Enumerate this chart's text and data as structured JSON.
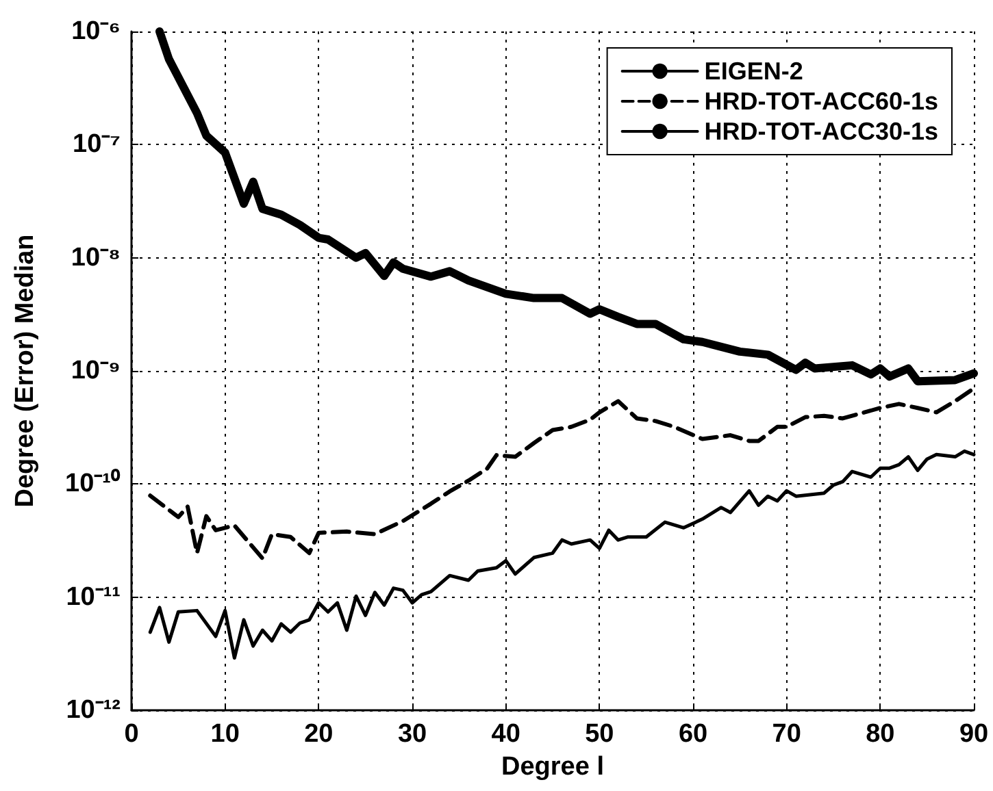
{
  "chart_data": {
    "type": "line",
    "xlabel": "Degree l",
    "ylabel": "Degree (Error) Median",
    "log": "y",
    "grid": true,
    "legend": "top right",
    "marker": "none",
    "xlim": [
      0,
      90
    ],
    "xticks": [
      0,
      10,
      20,
      30,
      40,
      50,
      60,
      70,
      80,
      90
    ],
    "ylim": [
      1e-12,
      1e-06
    ],
    "yticks": [
      {
        "value": 1e-12,
        "label": "10⁻¹²"
      },
      {
        "value": 1e-11,
        "label": "10⁻¹¹"
      },
      {
        "value": 1e-10,
        "label": "10⁻¹⁰"
      },
      {
        "value": 1e-09,
        "label": "10⁻⁹"
      },
      {
        "value": 1e-08,
        "label": "10⁻⁸"
      },
      {
        "value": 1e-07,
        "label": "10⁻⁷"
      },
      {
        "value": 1e-06,
        "label": "10⁻⁶"
      }
    ],
    "series": [
      {
        "name": "EIGEN-2",
        "color": "#000000",
        "line_style": "solid",
        "x": [
          3,
          4,
          7,
          8,
          10,
          12,
          13,
          14,
          16,
          18,
          20,
          21,
          24,
          25,
          27,
          28,
          29,
          32,
          34,
          36,
          40,
          43,
          46,
          49,
          50,
          52,
          54,
          56,
          59,
          61,
          65,
          68,
          71,
          72,
          73,
          77,
          79,
          80,
          81,
          83,
          84,
          88,
          90
        ],
        "values": [
          1e-06,
          5.7e-07,
          1.9e-07,
          1.2e-07,
          8.5e-08,
          3e-08,
          4.7e-08,
          2.7e-08,
          2.4e-08,
          1.95e-08,
          1.5e-08,
          1.45e-08,
          1e-08,
          1.1e-08,
          6.9e-09,
          9.1e-09,
          8e-09,
          6.8e-09,
          7.6e-09,
          6.3e-09,
          4.8e-09,
          4.4e-09,
          4.4e-09,
          3.2e-09,
          3.5e-09,
          3e-09,
          2.6e-09,
          2.6e-09,
          1.9e-09,
          1.8e-09,
          1.48e-09,
          1.39e-09,
          1.02e-09,
          1.18e-09,
          1.05e-09,
          1.12e-09,
          9.3e-10,
          1.05e-09,
          8.9e-10,
          1.05e-09,
          8.1e-10,
          8.3e-10,
          9.5e-10
        ]
      },
      {
        "name": "HRD-TOT-ACC60-1s",
        "color": "#000000",
        "line_style": "dashed",
        "x": [
          2,
          5,
          6,
          7,
          8,
          9,
          11,
          14,
          15,
          17,
          19,
          20,
          23,
          26,
          29,
          32,
          34,
          36,
          38,
          39,
          41,
          43,
          45,
          47,
          49,
          50,
          52,
          54,
          56,
          58,
          61,
          64,
          66,
          67,
          69,
          70,
          72,
          74,
          76,
          80,
          82,
          84,
          86,
          88,
          90
        ],
        "values": [
          7.9e-11,
          5.1e-11,
          6.3e-11,
          2.45e-11,
          5.2e-11,
          3.9e-11,
          4.3e-11,
          2.2e-11,
          3.6e-11,
          3.4e-11,
          2.45e-11,
          3.7e-11,
          3.8e-11,
          3.6e-11,
          4.7e-11,
          6.7e-11,
          8.6e-11,
          1.07e-10,
          1.37e-10,
          1.8e-10,
          1.74e-10,
          2.3e-10,
          3e-10,
          3.2e-10,
          3.7e-10,
          4.3e-10,
          5.4e-10,
          3.8e-10,
          3.6e-10,
          3.2e-10,
          2.5e-10,
          2.7e-10,
          2.4e-10,
          2.4e-10,
          3.2e-10,
          3.2e-10,
          3.9e-10,
          4e-10,
          3.8e-10,
          4.7e-10,
          5.1e-10,
          4.7e-10,
          4.3e-10,
          5.4e-10,
          7e-10
        ]
      },
      {
        "name": "HRD-TOT-ACC30-1s",
        "color": "#000000",
        "line_style": "solid",
        "x": [
          2,
          3,
          4,
          5,
          7,
          9,
          10,
          11,
          12,
          13,
          14,
          15,
          16,
          17,
          18,
          19,
          20,
          21,
          22,
          23,
          24,
          25,
          26,
          27,
          28,
          29,
          30,
          31,
          32,
          34,
          36,
          37,
          39,
          40,
          41,
          43,
          45,
          46,
          47,
          49,
          50,
          51,
          52,
          53,
          55,
          57,
          59,
          61,
          63,
          64,
          66,
          67,
          68,
          69,
          70,
          71,
          74,
          75,
          76,
          77,
          79,
          80,
          81,
          82,
          83,
          84,
          85,
          86,
          88,
          89,
          90
        ],
        "values": [
          4.9e-12,
          8.1e-12,
          4e-12,
          7.4e-12,
          7.6e-12,
          4.5e-12,
          7.6e-12,
          2.9e-12,
          6.3e-12,
          3.7e-12,
          5.1e-12,
          4.1e-12,
          5.8e-12,
          4.9e-12,
          5.9e-12,
          6.3e-12,
          8.9e-12,
          7.4e-12,
          8.9e-12,
          5.1e-12,
          1.02e-11,
          6.9e-12,
          1.1e-11,
          8.5e-12,
          1.2e-11,
          1.15e-11,
          8.9e-12,
          1.05e-11,
          1.12e-11,
          1.55e-11,
          1.41e-11,
          1.7e-11,
          1.82e-11,
          2.1e-11,
          1.6e-11,
          2.24e-11,
          2.45e-11,
          3.2e-11,
          2.95e-11,
          3.2e-11,
          2.7e-11,
          3.9e-11,
          3.2e-11,
          3.4e-11,
          3.4e-11,
          4.6e-11,
          4.1e-11,
          4.9e-11,
          6.2e-11,
          5.6e-11,
          8.7e-11,
          6.5e-11,
          7.8e-11,
          7.1e-11,
          8.7e-11,
          7.8e-11,
          8.3e-11,
          9.8e-11,
          1.05e-10,
          1.29e-10,
          1.15e-10,
          1.38e-10,
          1.38e-10,
          1.48e-10,
          1.74e-10,
          1.32e-10,
          1.66e-10,
          1.82e-10,
          1.74e-10,
          1.95e-10,
          1.82e-10
        ]
      }
    ]
  }
}
